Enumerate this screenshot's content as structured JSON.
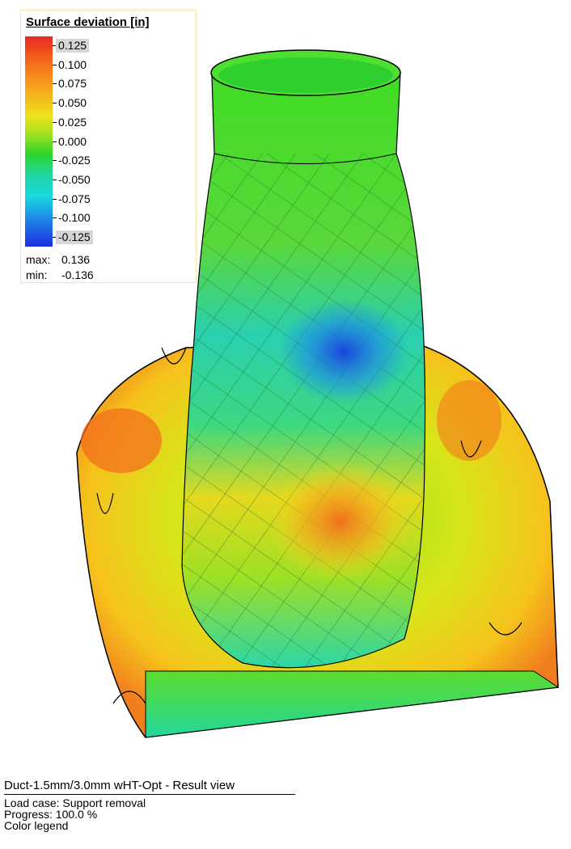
{
  "legend": {
    "title": "Surface deviation [in]",
    "labels": [
      "0.125",
      "0.100",
      "0.075",
      "0.050",
      "0.025",
      "0.000",
      "-0.025",
      "-0.050",
      "-0.075",
      "-0.100",
      "-0.125"
    ],
    "max_label": "max:",
    "max_value": "0.136",
    "min_label": "min:",
    "min_value": "-0.136"
  },
  "footer": {
    "title": "Duct-1.5mm/3.0mm wHT-Opt - Result view",
    "lines": [
      "Load case: Support removal",
      "Progress: 100.0 %",
      "Color legend"
    ]
  }
}
